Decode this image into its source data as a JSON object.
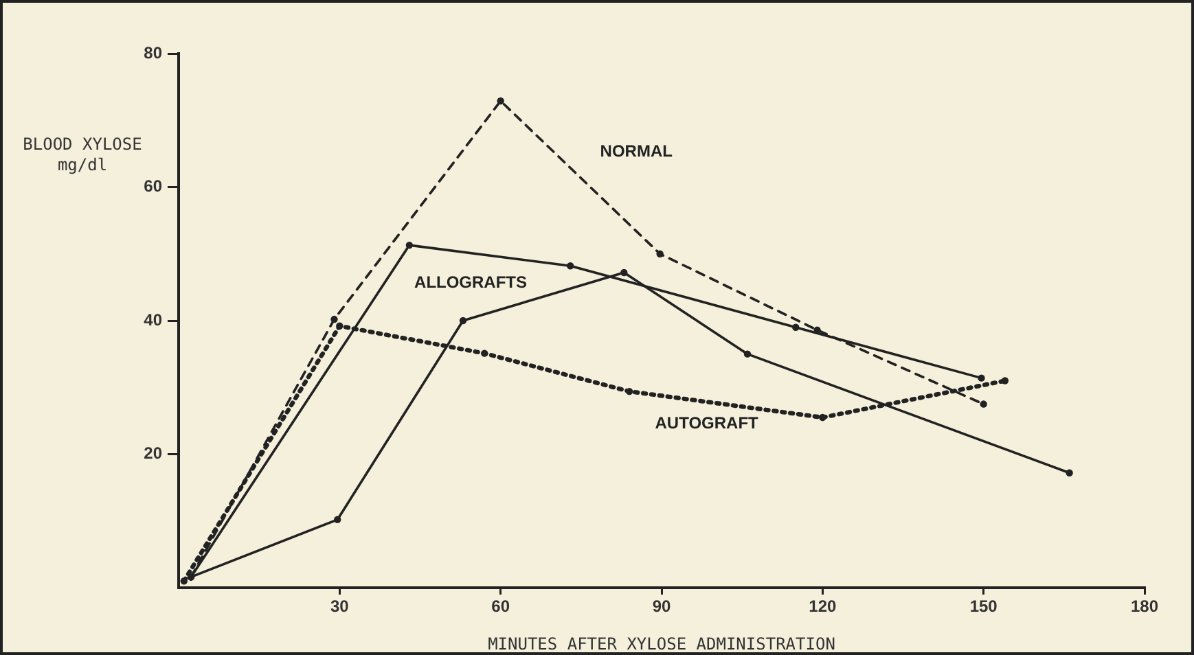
{
  "chart_data": {
    "type": "line",
    "xlabel": "MINUTES AFTER XYLOSE ADMINISTRATION",
    "ylabel": "BLOOD XYLOSE\nmg/dl",
    "xlim": [
      0,
      180
    ],
    "xticks": [
      30,
      60,
      90,
      120,
      150,
      180
    ],
    "ylim": [
      0,
      80
    ],
    "yticks": [
      20,
      40,
      60,
      80
    ],
    "grid": false,
    "legend": false,
    "marker": "circle",
    "series": [
      {
        "name": "NORMAL",
        "color": "#222222",
        "line_style": "dashed",
        "x": [
          2.3,
          29,
          60,
          89.7,
          119,
          150
        ],
        "values": [
          1.6,
          40.2,
          72.9,
          50,
          38.6,
          27.5
        ]
      },
      {
        "name": "ALLOGRAFTS",
        "color": "#222222",
        "line_style": "solid",
        "x": [
          2.3,
          43,
          73,
          115,
          149.6
        ],
        "values": [
          1.6,
          51.3,
          48.2,
          39,
          31.4
        ]
      },
      {
        "color": "#222222",
        "line_style": "solid",
        "x": [
          2.3,
          29.6,
          53,
          83,
          106,
          166
        ],
        "values": [
          1.6,
          10.2,
          40,
          47.2,
          35,
          17.2
        ]
      },
      {
        "name": "AUTOGRAFT",
        "color": "#222222",
        "line_style": "dotted",
        "x": [
          1,
          30,
          57,
          84,
          120,
          154
        ],
        "values": [
          1,
          39.2,
          35.1,
          29.4,
          25.5,
          31
        ]
      }
    ]
  }
}
